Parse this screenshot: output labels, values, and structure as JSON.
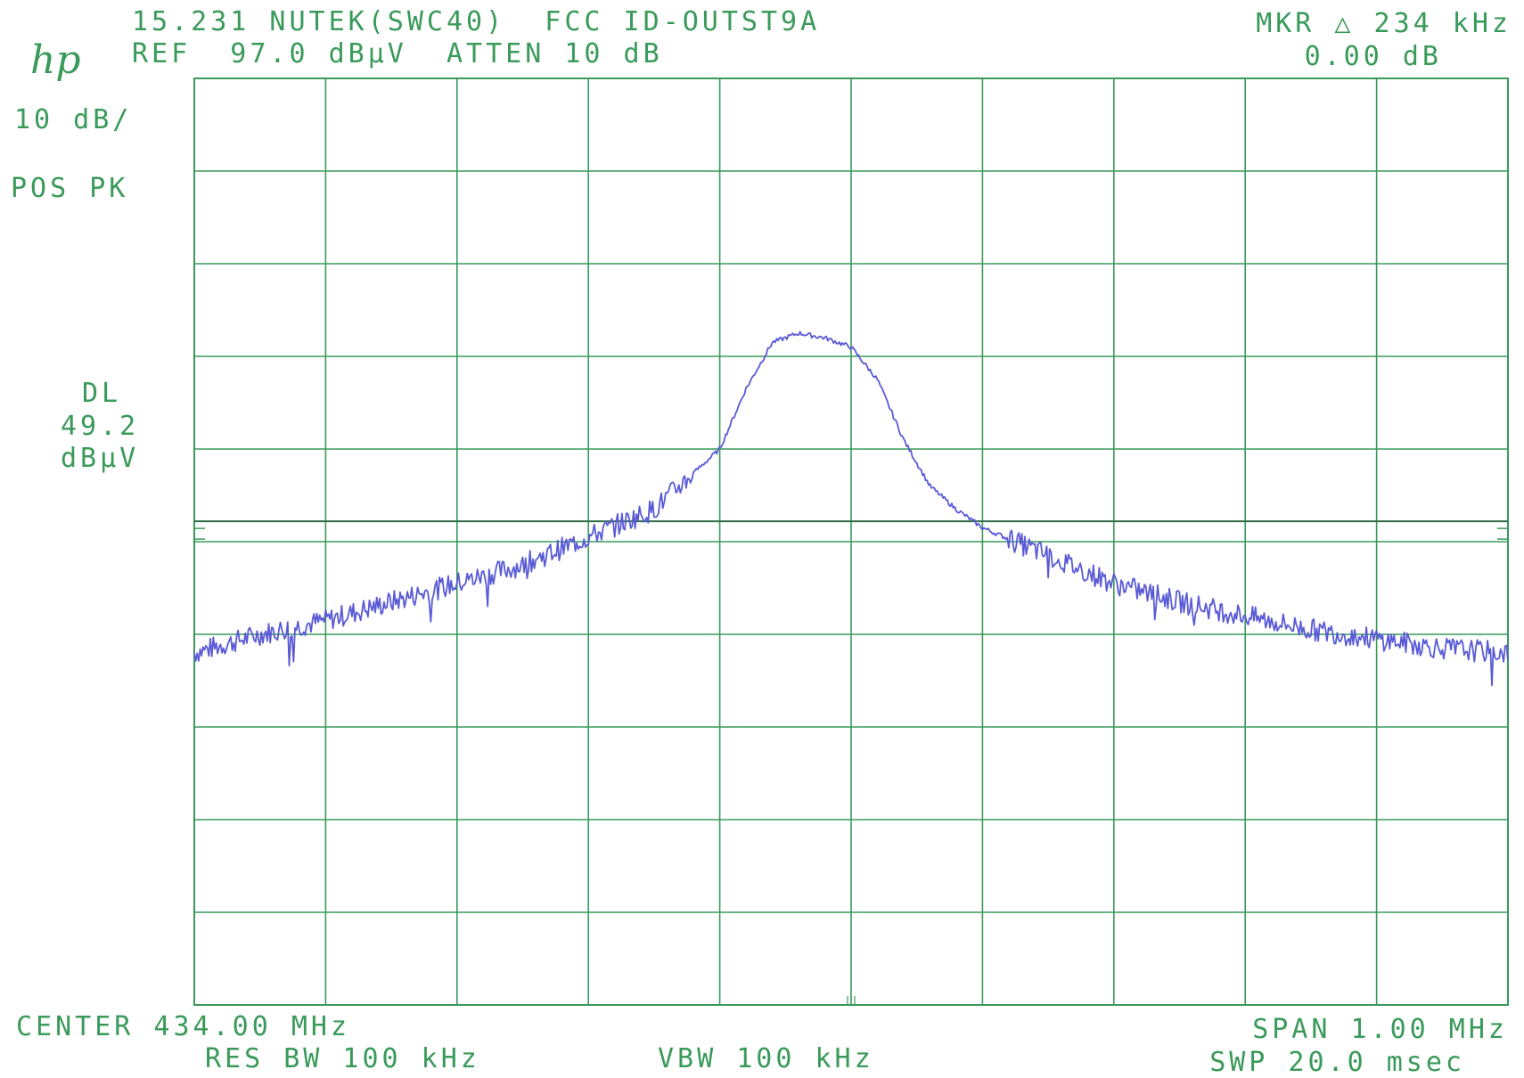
{
  "logo": "hp",
  "header": {
    "title": "15.231 NUTEK(SWC40)  FCC ID-OUTST9A",
    "ref": "REF  97.0 dBµV  ATTEN 10 dB",
    "marker": "MKR △ 234 kHz",
    "marker_value": "0.00 dB"
  },
  "left_panel": {
    "scale": "10 dB/",
    "detector": "POS PK",
    "dl_label": "DL",
    "dl_value": "49.2",
    "dl_unit": "dBµV"
  },
  "footer": {
    "center": "CENTER 434.00 MHz",
    "res_bw": "RES BW 100 kHz",
    "vbw": "VBW 100 kHz",
    "span": "SPAN 1.00 MHz",
    "sweep": "SWP 20.0 msec"
  },
  "colors": {
    "grid": "#3a9a5a",
    "trace": "#5a5ad6",
    "display_line": "#2e6b45"
  },
  "chart_data": {
    "type": "line",
    "title": "",
    "xlabel": "",
    "ylabel": "",
    "x_center_mhz": 434.0,
    "x_span_mhz": 1.0,
    "xlim": [
      433.5,
      434.5
    ],
    "ylim": [
      -3.0,
      97.0
    ],
    "ref_level_dbuv": 97.0,
    "scale_db_per_div": 10,
    "grid": true,
    "grid_divisions": {
      "x": 10,
      "y": 10
    },
    "display_line_dbuv": 49.2,
    "marker_delta_khz": 234,
    "marker_delta_db": 0.0,
    "series": [
      {
        "x": [
          433.5,
          433.55,
          433.6,
          433.65,
          433.7,
          433.75,
          433.8,
          433.85,
          433.9,
          433.92,
          433.94,
          433.96,
          433.98,
          434.0,
          434.02,
          434.04,
          434.06,
          434.08,
          434.1,
          434.15,
          434.2,
          434.25,
          434.3,
          434.35,
          434.4,
          434.45,
          434.5
        ],
        "y": [
          35.0,
          37.0,
          38.5,
          40.5,
          42.5,
          44.5,
          47.5,
          50.5,
          57.0,
          63.5,
          68.5,
          69.5,
          69.0,
          68.0,
          64.5,
          58.0,
          53.0,
          50.5,
          48.5,
          45.5,
          42.5,
          40.5,
          39.0,
          37.5,
          36.5,
          35.5,
          35.0
        ]
      }
    ]
  }
}
